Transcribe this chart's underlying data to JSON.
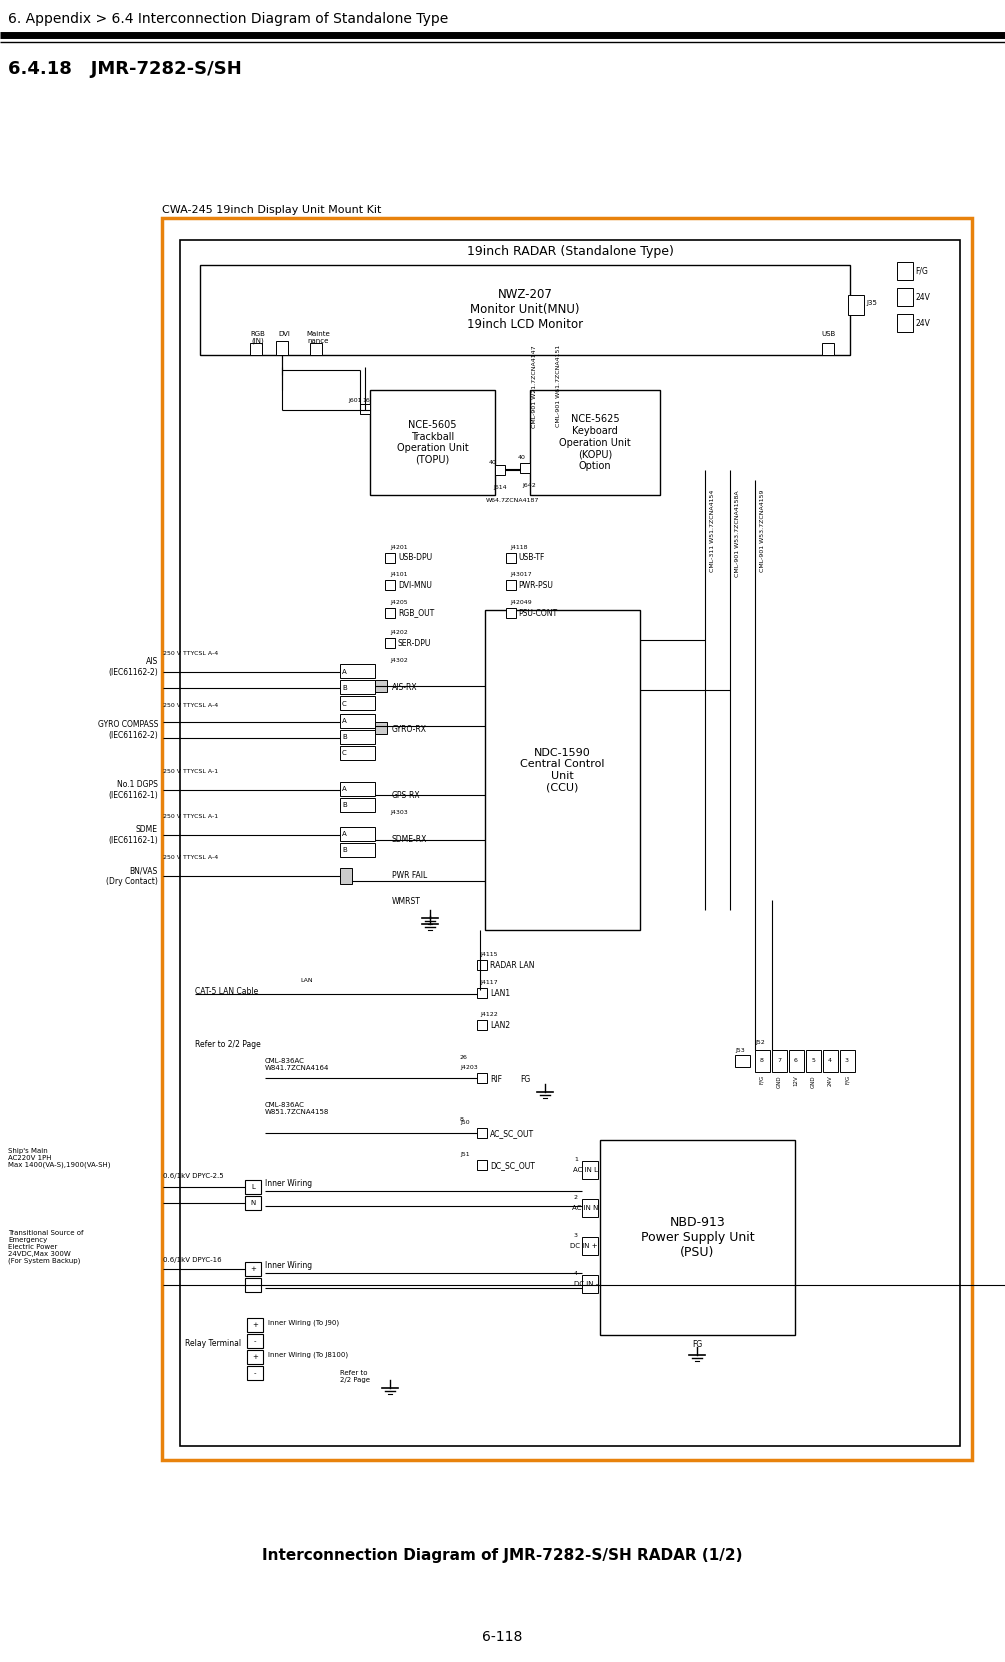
{
  "page_title": "6. Appendix > 6.4 Interconnection Diagram of Standalone Type",
  "section_title": "6.4.18   JMR-7282-S/SH",
  "page_number": "6-118",
  "caption": "Interconnection Diagram of JMR-7282-S/SH RADAR (1/2)",
  "outer_box_label": "CWA-245 19inch Display Unit Mount Kit",
  "inner_box_label": "19inch RADAR (Standalone Type)",
  "monitor_unit": "NWZ-207\nMonitor Unit(MNU)\n19inch LCD Monitor",
  "nce5605_label": "NCE-5605\nTrackball\nOperation Unit\n(TOPU)",
  "nce5625_label": "NCE-5625\nKeyboard\nOperation Unit\n(KOPU)\nOption",
  "ccu_label": "NDC-1590\nCentral Control\nUnit\n(CCU)",
  "psu_label": "NBD-913\nPower Supply Unit\n(PSU)",
  "bg_color": "#ffffff",
  "outer_border_color": "#E8820C",
  "inner_border_color": "#000000",
  "text_color": "#000000",
  "figw": 10.05,
  "figh": 16.62,
  "dpi": 100
}
